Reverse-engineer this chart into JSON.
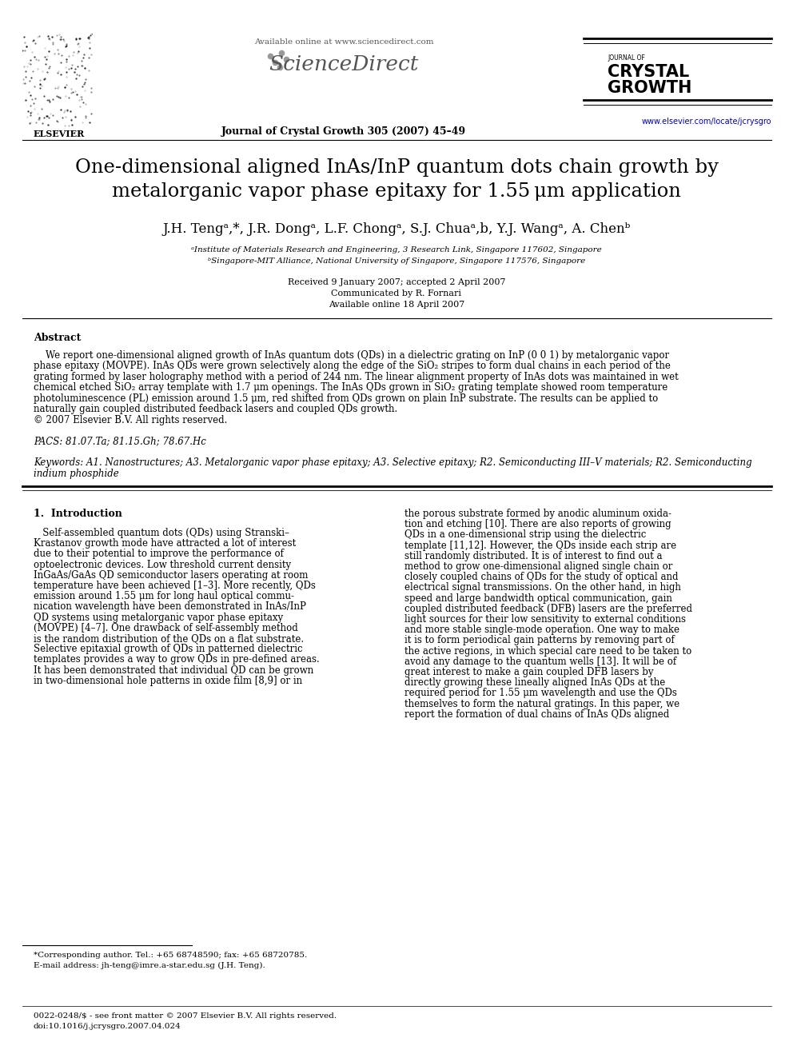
{
  "background_color": "#ffffff",
  "available_online": "Available online at www.sciencedirect.com",
  "journal_line": "Journal of Crystal Growth 305 (2007) 45–49",
  "website": "www.elsevier.com/locate/jcrysgro",
  "title_line1": "One-dimensional aligned InAs/InP quantum dots chain growth by",
  "title_line2": "metalorganic vapor phase epitaxy for 1.55 μm application",
  "authors_display": "J.H. Tengᵃ,*, J.R. Dongᵃ, L.F. Chongᵃ, S.J. Chuaᵃ,b, Y.J. Wangᵃ, A. Chenᵇ",
  "affil_a": "ᵃInstitute of Materials Research and Engineering, 3 Research Link, Singapore 117602, Singapore",
  "affil_b": "ᵇSingapore-MIT Alliance, National University of Singapore, Singapore 117576, Singapore",
  "received": "Received 9 January 2007; accepted 2 April 2007",
  "communicated": "Communicated by R. Fornari",
  "available": "Available online 18 April 2007",
  "abstract_title": "Abstract",
  "abstract_line1": "    We report one-dimensional aligned growth of InAs quantum dots (QDs) in a dielectric grating on InP (0 0 1) by metalorganic vapor",
  "abstract_line2": "phase epitaxy (MOVPE). InAs QDs were grown selectively along the edge of the SiO₂ stripes to form dual chains in each period of the",
  "abstract_line3": "grating formed by laser holography method with a period of 244 nm. The linear alignment property of InAs dots was maintained in wet",
  "abstract_line4": "chemical etched SiO₂ array template with 1.7 μm openings. The InAs QDs grown in SiO₂ grating template showed room temperature",
  "abstract_line5": "photoluminescence (PL) emission around 1.5 μm, red shifted from QDs grown on plain InP substrate. The results can be applied to",
  "abstract_line6": "naturally gain coupled distributed feedback lasers and coupled QDs growth.",
  "abstract_line7": "© 2007 Elsevier B.V. All rights reserved.",
  "pacs": "PACS: 81.07.Ta; 81.15.Gh; 78.67.Hc",
  "kw_line1": "Keywords: A1. Nanostructures; A3. Metalorganic vapor phase epitaxy; A3. Selective epitaxy; R2. Semiconducting III–V materials; R2. Semiconducting",
  "kw_line2": "indium phosphide",
  "sec1_title": "1.  Introduction",
  "col1_lines": [
    "   Self-assembled quantum dots (QDs) using Stranski–",
    "Krastanov growth mode have attracted a lot of interest",
    "due to their potential to improve the performance of",
    "optoelectronic devices. Low threshold current density",
    "InGaAs/GaAs QD semiconductor lasers operating at room",
    "temperature have been achieved [1–3]. More recently, QDs",
    "emission around 1.55 μm for long haul optical commu-",
    "nication wavelength have been demonstrated in InAs/InP",
    "QD systems using metalorganic vapor phase epitaxy",
    "(MOVPE) [4–7]. One drawback of self-assembly method",
    "is the random distribution of the QDs on a flat substrate.",
    "Selective epitaxial growth of QDs in patterned dielectric",
    "templates provides a way to grow QDs in pre-defined areas.",
    "It has been demonstrated that individual QD can be grown",
    "in two-dimensional hole patterns in oxide film [8,9] or in"
  ],
  "col2_lines": [
    "the porous substrate formed by anodic aluminum oxida-",
    "tion and etching [10]. There are also reports of growing",
    "QDs in a one-dimensional strip using the dielectric",
    "template [11,12]. However, the QDs inside each strip are",
    "still randomly distributed. It is of interest to find out a",
    "method to grow one-dimensional aligned single chain or",
    "closely coupled chains of QDs for the study of optical and",
    "electrical signal transmissions. On the other hand, in high",
    "speed and large bandwidth optical communication, gain",
    "coupled distributed feedback (DFB) lasers are the preferred",
    "light sources for their low sensitivity to external conditions",
    "and more stable single-mode operation. One way to make",
    "it is to form periodical gain patterns by removing part of",
    "the active regions, in which special care need to be taken to",
    "avoid any damage to the quantum wells [13]. It will be of",
    "great interest to make a gain coupled DFB lasers by",
    "directly growing these lineally aligned InAs QDs at the",
    "required period for 1.55 μm wavelength and use the QDs",
    "themselves to form the natural gratings. In this paper, we",
    "report the formation of dual chains of InAs QDs aligned"
  ],
  "footnote1": "*Corresponding author. Tel.: +65 68748590; fax: +65 68720785.",
  "footnote2": "E-mail address: jh-teng@imre.a-star.edu.sg (J.H. Teng).",
  "footer1": "0022-0248/$ - see front matter © 2007 Elsevier B.V. All rights reserved.",
  "footer2": "doi:10.1016/j.jcrysgro.2007.04.024"
}
